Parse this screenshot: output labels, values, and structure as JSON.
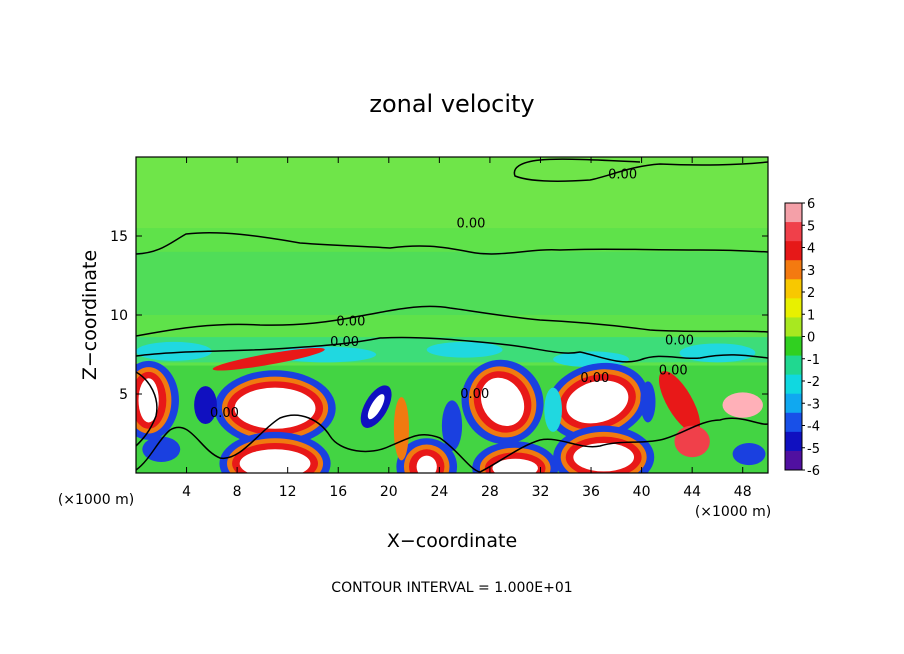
{
  "chart_data": {
    "type": "heatmap",
    "title": "zonal velocity",
    "xlabel": "X−coordinate",
    "ylabel": "Z−coordinate",
    "x_unit_left": "(×1000 m)",
    "x_unit_right": "(×1000 m)",
    "footer": "CONTOUR INTERVAL = 1.000E+01",
    "xlim": [
      0,
      50
    ],
    "ylim": [
      0,
      20
    ],
    "x_ticks": [
      4,
      8,
      12,
      16,
      20,
      24,
      28,
      32,
      36,
      40,
      44,
      48
    ],
    "y_ticks": [
      5,
      10,
      15
    ],
    "colorbar": {
      "min": -6,
      "max": 6,
      "ticks": [
        6,
        5,
        4,
        3,
        2,
        1,
        0,
        -1,
        -2,
        -3,
        -4,
        -5,
        -6
      ],
      "colors": [
        "#f4a0a8",
        "#f0404a",
        "#e61818",
        "#f47a10",
        "#f8c800",
        "#e8f000",
        "#a8e820",
        "#30d020",
        "#20d890",
        "#10d8e0",
        "#10a8f0",
        "#1850e8",
        "#1010c0",
        "#5010a0"
      ]
    },
    "contour_label": "0.00",
    "contour_labels": [
      {
        "text": "0.00",
        "x": 26.5,
        "y": 15.8
      },
      {
        "text": "0.00",
        "x": 38.5,
        "y": 18.9
      },
      {
        "text": "0.00",
        "x": 17.0,
        "y": 9.6
      },
      {
        "text": "0.00",
        "x": 16.5,
        "y": 8.3
      },
      {
        "text": "0.00",
        "x": 43.0,
        "y": 8.4
      },
      {
        "text": "0.00",
        "x": 42.5,
        "y": 6.5
      },
      {
        "text": "0.00",
        "x": 36.3,
        "y": 6.0
      },
      {
        "text": "0.00",
        "x": 26.8,
        "y": 5.0
      },
      {
        "text": "0.00",
        "x": 7.0,
        "y": 3.8
      }
    ]
  }
}
